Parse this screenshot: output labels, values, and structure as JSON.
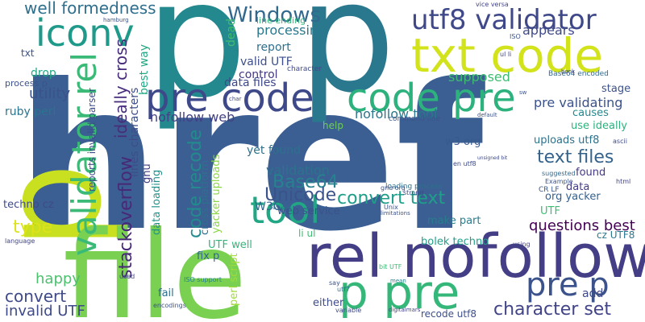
{
  "words": [
    {
      "text": "href",
      "color": "#3b5f92"
    },
    {
      "text": "p",
      "color": "#23898e"
    },
    {
      "text": "p",
      "color": "#2a788e"
    },
    {
      "text": "p",
      "color": "#c8e020"
    },
    {
      "text": "file",
      "color": "#7ad151"
    },
    {
      "text": "rel nofollow",
      "color": "#433e85"
    },
    {
      "text": "pre code",
      "color": "#3e4989"
    },
    {
      "text": "code pre",
      "color": "#2db27d"
    },
    {
      "text": "txt code",
      "color": "#d2e21b"
    },
    {
      "text": "utf8 validator",
      "color": "#3f4889"
    },
    {
      "text": "validator rel",
      "color": "#3aba76"
    },
    {
      "text": "iconv",
      "color": "#1f9a8a"
    },
    {
      "text": "tool",
      "color": "#22a785"
    },
    {
      "text": "p pre",
      "color": "#35b779"
    },
    {
      "text": "pre p",
      "color": "#3b528b"
    },
    {
      "text": "Windows",
      "color": "#31688e"
    },
    {
      "text": "character set",
      "color": "#414487"
    },
    {
      "text": "text files",
      "color": "#33638d"
    },
    {
      "text": "convert text",
      "color": "#1f9e89"
    },
    {
      "text": "code recode",
      "color": "#238a8d"
    },
    {
      "text": "Base64",
      "color": "#26828e"
    },
    {
      "text": "Unicode",
      "color": "#3b528b"
    },
    {
      "text": "stackoverflow",
      "color": "#482878"
    },
    {
      "text": "ideally cross",
      "color": "#472d7b"
    },
    {
      "text": "well formedness",
      "color": "#2e6f8e"
    },
    {
      "text": "type",
      "color": "#dde318"
    },
    {
      "text": "convert",
      "color": "#3e4a89"
    },
    {
      "text": "happy",
      "color": "#4ac16d"
    },
    {
      "text": "invalid UTF",
      "color": "#3e4989"
    },
    {
      "text": "questions best",
      "color": "#440154"
    },
    {
      "text": "nofollow web",
      "color": "#424086"
    },
    {
      "text": "nofollow tool",
      "color": "#2a778e"
    },
    {
      "text": "pre validating",
      "color": "#3b528b"
    },
    {
      "text": "appears",
      "color": "#3e4a89"
    },
    {
      "text": "validation",
      "color": "#2c728e"
    },
    {
      "text": "processing",
      "color": "#2a788e"
    },
    {
      "text": "supposed",
      "color": "#3fbc73"
    },
    {
      "text": "data files",
      "color": "#3e4989"
    },
    {
      "text": "report",
      "color": "#2d708e"
    },
    {
      "text": "valid UTF",
      "color": "#3d4e8a"
    },
    {
      "text": "control",
      "color": "#453781"
    },
    {
      "text": "utility",
      "color": "#3b528b"
    },
    {
      "text": "drop",
      "color": "#22a884"
    },
    {
      "text": "ruby perl",
      "color": "#2c738e"
    },
    {
      "text": "best way",
      "color": "#23a983"
    },
    {
      "text": "lines characters",
      "color": "#3d4d8a"
    },
    {
      "text": "dead",
      "color": "#40bd72"
    },
    {
      "text": "cross platform",
      "color": "#2d708e"
    },
    {
      "text": "yacker uploads",
      "color": "#8bd646"
    },
    {
      "text": "data loading",
      "color": "#20928c"
    },
    {
      "text": "perl script",
      "color": "#9fda3a"
    },
    {
      "text": "yet found",
      "color": "#2c718e"
    },
    {
      "text": "W3C",
      "color": "#33638d"
    },
    {
      "text": "web service",
      "color": "#3b528b"
    },
    {
      "text": "make part",
      "color": "#287d8e"
    },
    {
      "text": "UTF well",
      "color": "#32b67a"
    },
    {
      "text": "fix p",
      "color": "#31668e"
    },
    {
      "text": "fail",
      "color": "#2e6e8e"
    },
    {
      "text": "either",
      "color": "#3e4c8a"
    },
    {
      "text": "bolek techno",
      "color": "#1f9f88"
    },
    {
      "text": "recode utf8",
      "color": "#3d4e8a"
    },
    {
      "text": "data",
      "color": "#433e85"
    },
    {
      "text": "found",
      "color": "#453882"
    },
    {
      "text": "org yacker",
      "color": "#34608d"
    },
    {
      "text": "uploads utf8",
      "color": "#2c728e"
    },
    {
      "text": "w3 org",
      "color": "#38598c"
    },
    {
      "text": "UTF",
      "color": "#3dbc74"
    },
    {
      "text": "cz UTF8",
      "color": "#2a788e"
    },
    {
      "text": "add",
      "color": "#3e4a89"
    },
    {
      "text": "stage",
      "color": "#3b528b"
    },
    {
      "text": "causes",
      "color": "#23898e"
    },
    {
      "text": "use ideally",
      "color": "#2db27d"
    },
    {
      "text": "Base64 encoded",
      "color": "#31688e"
    },
    {
      "text": "CR LF",
      "color": "#38588c"
    },
    {
      "text": "techno cz",
      "color": "#3e4a89"
    },
    {
      "text": "gnu",
      "color": "#424086"
    },
    {
      "text": "txt",
      "color": "#3b528b"
    },
    {
      "text": "process p",
      "color": "#3b528b"
    },
    {
      "text": "reports invalid parser",
      "color": "#3e4c8a"
    },
    {
      "text": "help",
      "color": "#6ece58"
    },
    {
      "text": "line ending",
      "color": "#34b679"
    },
    {
      "text": "command line",
      "color": "#3a548c"
    },
    {
      "text": "loading process",
      "color": "#2d708e"
    },
    {
      "text": "character",
      "color": "#3e4989"
    },
    {
      "text": "li ul",
      "color": "#3fbc73"
    },
    {
      "text": "encodings",
      "color": "#3b528b"
    },
    {
      "text": "ISO support",
      "color": "#26828e"
    },
    {
      "text": "used",
      "color": "#3e4989"
    },
    {
      "text": "language",
      "color": "#414487"
    },
    {
      "text": "ascii",
      "color": "#3e4a89"
    },
    {
      "text": "ISO",
      "color": "#3b528b"
    },
    {
      "text": "vice versa",
      "color": "#414487"
    },
    {
      "text": "gnu org",
      "color": "#3b528b"
    },
    {
      "text": "strong",
      "color": "#3e4989"
    },
    {
      "text": "Example",
      "color": "#3b528b"
    },
    {
      "text": "html",
      "color": "#414487"
    },
    {
      "text": "suggested",
      "color": "#31688e"
    },
    {
      "text": "book",
      "color": "#3e4989"
    },
    {
      "text": "using",
      "color": "#433e85"
    },
    {
      "text": "say",
      "color": "#3b528b"
    },
    {
      "text": "utf7",
      "color": "#2c738e"
    },
    {
      "text": "variable",
      "color": "#3e4a89"
    },
    {
      "text": "Unix",
      "color": "#3b528b"
    },
    {
      "text": "bit UTF",
      "color": "#3dbc74"
    },
    {
      "text": "digitalmars",
      "color": "#414487"
    },
    {
      "text": "hamburg",
      "color": "#3b528b"
    },
    {
      "text": "char",
      "color": "#3e4989"
    },
    {
      "text": "mean",
      "color": "#26828e"
    },
    {
      "text": "default",
      "color": "#3b528b"
    },
    {
      "text": "en utf8",
      "color": "#3e4989"
    },
    {
      "text": "limitations",
      "color": "#3b528b"
    },
    {
      "text": "ul li",
      "color": "#414487"
    },
    {
      "text": "sw",
      "color": "#3b528b"
    },
    {
      "text": "solution",
      "color": "#2e6e8e"
    },
    {
      "text": "unsigned bit",
      "color": "#3e4989"
    }
  ]
}
